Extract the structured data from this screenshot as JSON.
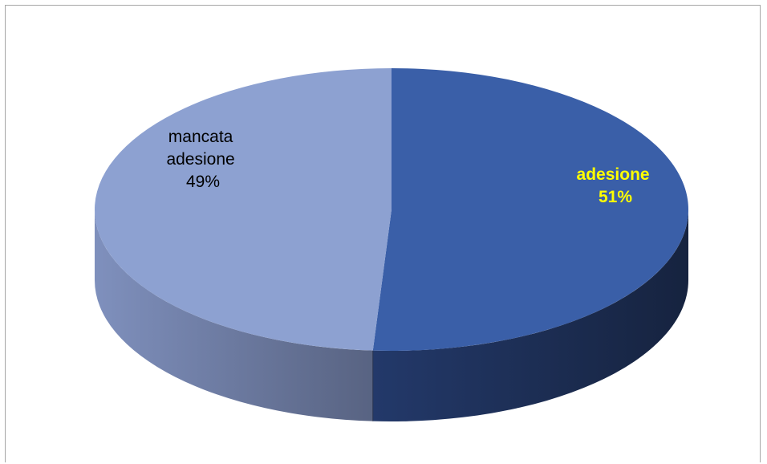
{
  "chart_data": {
    "type": "pie",
    "title": "",
    "categories": [
      "adesione",
      "mancata adesione"
    ],
    "values": [
      51,
      49
    ],
    "value_unit": "%",
    "labels": [
      {
        "lines": [
          "adesione",
          "51%"
        ]
      },
      {
        "lines": [
          "mancata",
          "adesione",
          "49%"
        ]
      }
    ],
    "legend": "none",
    "style": "3d",
    "colors": {
      "adesione_top": "#3a5fa8",
      "adesione_side": "#1e2f58",
      "mancata_top": "#8da1d1",
      "mancata_side": "#6a7aa2",
      "label_adesione": "#ffff00",
      "label_mancata": "#000000"
    }
  }
}
